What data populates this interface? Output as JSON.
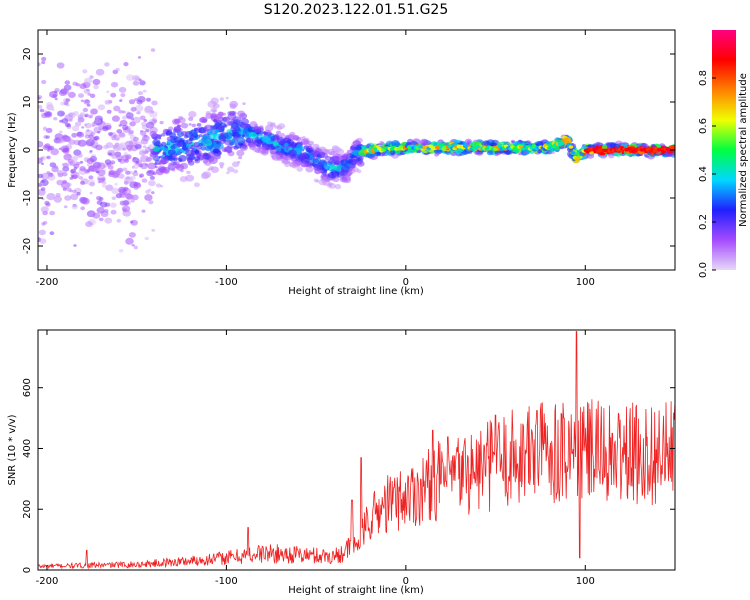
{
  "title": "S120.2023.122.01.51.G25",
  "chart_data": [
    {
      "type": "heatmap",
      "title": "S120.2023.122.01.51.G25",
      "xlabel": "Height of straight line (km)",
      "ylabel": "Frequency (Hz)",
      "xlim": [
        -205,
        150
      ],
      "ylim": [
        -25,
        25
      ],
      "x_ticks": [
        -200,
        -100,
        0,
        100
      ],
      "y_ticks": [
        -20,
        -10,
        0,
        10,
        20
      ],
      "colorbar": {
        "label": "Normalized spectral amplitude",
        "range": [
          0,
          1
        ],
        "ticks": [
          0.0,
          0.2,
          0.4,
          0.6,
          0.8
        ],
        "colors": [
          "#e6d8f8",
          "#a44bff",
          "#2020ff",
          "#00d8ff",
          "#00ff40",
          "#f0ff00",
          "#ff8000",
          "#ff0000",
          "#ff0080"
        ]
      },
      "ridge": [
        {
          "x": -205,
          "f": 0
        },
        {
          "x": -150,
          "f": 0
        },
        {
          "x": -120,
          "f": 1
        },
        {
          "x": -100,
          "f": 3
        },
        {
          "x": -90,
          "f": 4
        },
        {
          "x": -70,
          "f": 1
        },
        {
          "x": -55,
          "f": -1
        },
        {
          "x": -45,
          "f": -3.5
        },
        {
          "x": -35,
          "f": -4
        },
        {
          "x": -28,
          "f": -1
        },
        {
          "x": -20,
          "f": 0
        },
        {
          "x": 0,
          "f": 0.5
        },
        {
          "x": 50,
          "f": 0.5
        },
        {
          "x": 80,
          "f": 0.5
        },
        {
          "x": 90,
          "f": 2
        },
        {
          "x": 95,
          "f": -2
        },
        {
          "x": 100,
          "f": 0
        },
        {
          "x": 150,
          "f": 0
        }
      ]
    },
    {
      "type": "line",
      "xlabel": "Height of straight line (km)",
      "ylabel": "SNR (10 * v/v)",
      "xlim": [
        -205,
        150
      ],
      "ylim": [
        0,
        790
      ],
      "x_ticks": [
        -200,
        -100,
        0,
        100
      ],
      "y_ticks": [
        0,
        200,
        400,
        600
      ],
      "color": "#ee2222",
      "trend": [
        {
          "x": -205,
          "y": 12
        },
        {
          "x": -150,
          "y": 18
        },
        {
          "x": -120,
          "y": 30
        },
        {
          "x": -100,
          "y": 40
        },
        {
          "x": -80,
          "y": 55
        },
        {
          "x": -60,
          "y": 50
        },
        {
          "x": -40,
          "y": 45
        },
        {
          "x": -28,
          "y": 80
        },
        {
          "x": -20,
          "y": 170
        },
        {
          "x": -10,
          "y": 220
        },
        {
          "x": 0,
          "y": 240
        },
        {
          "x": 20,
          "y": 300
        },
        {
          "x": 40,
          "y": 330
        },
        {
          "x": 60,
          "y": 370
        },
        {
          "x": 80,
          "y": 400
        },
        {
          "x": 100,
          "y": 390
        },
        {
          "x": 120,
          "y": 380
        },
        {
          "x": 150,
          "y": 385
        }
      ],
      "spikes": [
        {
          "x": -178,
          "y": 65
        },
        {
          "x": -88,
          "y": 140
        },
        {
          "x": -30,
          "y": 230
        },
        {
          "x": -25,
          "y": 370
        },
        {
          "x": 15,
          "y": 460
        },
        {
          "x": 50,
          "y": 510
        },
        {
          "x": 73,
          "y": 525
        },
        {
          "x": 88,
          "y": 500
        },
        {
          "x": 95,
          "y": 785
        },
        {
          "x": 97,
          "y": 40
        },
        {
          "x": 115,
          "y": 450
        }
      ]
    }
  ]
}
